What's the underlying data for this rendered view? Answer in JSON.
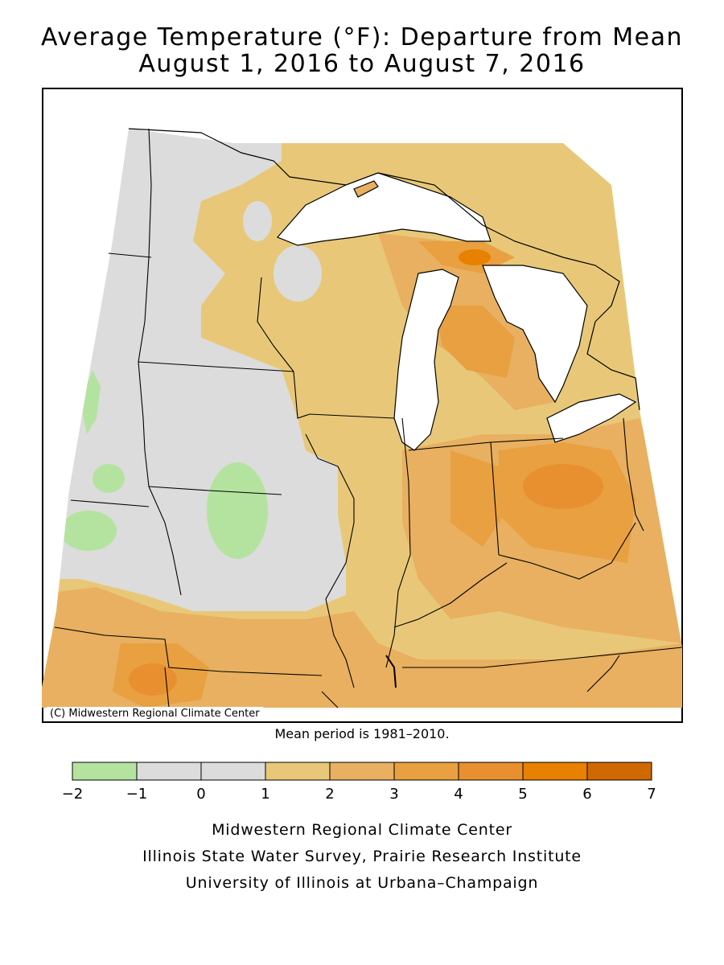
{
  "title": {
    "line1": "Average Temperature (°F): Departure from Mean",
    "line2": "August 1, 2016 to August 7, 2016"
  },
  "map": {
    "copyright": "(C) Midwestern Regional Climate Center"
  },
  "mean_note": "Mean period is 1981–2010.",
  "legend": {
    "ticks": [
      "−2",
      "−1",
      "0",
      "1",
      "2",
      "3",
      "4",
      "5",
      "6",
      "7"
    ],
    "colors": [
      "#b4e3a0",
      "#dcdcdc",
      "#dcdcdc",
      "#e8c878",
      "#e8b060",
      "#e8a040",
      "#e89030",
      "#e88000",
      "#d06800"
    ]
  },
  "credits": {
    "line1": "Midwestern Regional Climate Center",
    "line2": "Illinois State Water Survey, Prairie Research Institute",
    "line3": "University of Illinois at Urbana–Champaign"
  }
}
